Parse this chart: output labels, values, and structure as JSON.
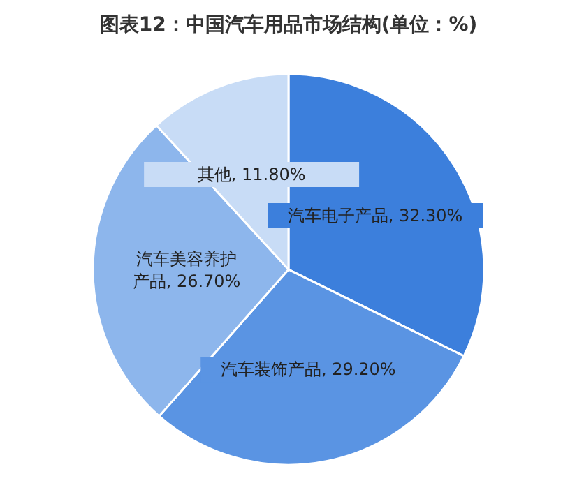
{
  "chart_data": {
    "type": "pie",
    "title": "图表12：中国汽车用品市场结构(单位：%)",
    "categories": [
      "汽车电子产品",
      "汽车装饰产品",
      "汽车美容养护产品",
      "其他"
    ],
    "values": [
      32.3,
      29.2,
      26.7,
      11.8
    ],
    "value_labels": [
      "32.30%",
      "29.20%",
      "26.70%",
      "11.80%"
    ],
    "colors": [
      "#3c7fdc",
      "#5a94e3",
      "#8db6ec",
      "#c8dcf6"
    ],
    "legend": false
  }
}
